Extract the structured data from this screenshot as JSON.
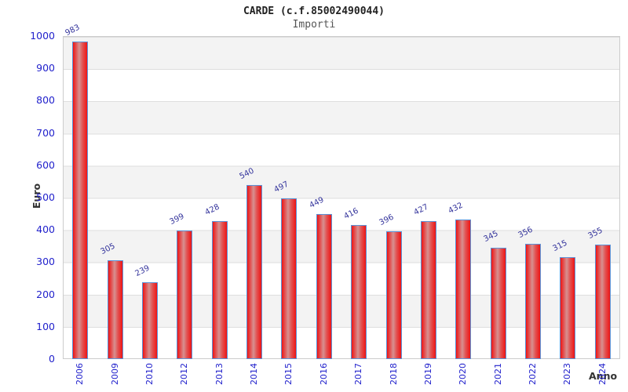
{
  "title": "CARDE (c.f.85002490044)",
  "subtitle": "Importi",
  "y_axis_title": "Euro",
  "x_axis_title": "Anno",
  "chart_data": {
    "type": "bar",
    "title": "CARDE (c.f.85002490044)",
    "subtitle": "Importi",
    "xlabel": "Anno",
    "ylabel": "Euro",
    "categories": [
      "2006",
      "2009",
      "2010",
      "2012",
      "2013",
      "2014",
      "2015",
      "2016",
      "2017",
      "2018",
      "2019",
      "2020",
      "2021",
      "2022",
      "2023",
      "2024"
    ],
    "values": [
      983,
      305,
      239,
      399,
      428,
      540,
      497,
      449,
      416,
      396,
      427,
      432,
      345,
      356,
      315,
      355
    ],
    "ylim": [
      0,
      1000
    ],
    "ytick_step": 100,
    "ytick_labels": [
      "0",
      "100",
      "200",
      "300",
      "400",
      "500",
      "600",
      "700",
      "800",
      "900",
      "1000"
    ],
    "grid": "horizontal-bands-alternating",
    "legend": "none",
    "bar_value_labels_shown": true
  },
  "colors": {
    "background": "#ffffff",
    "title": "#222222",
    "subtitle": "#555555",
    "axis_tick_label": "#2222cc",
    "value_label": "#32329b",
    "axis_title": "#333333",
    "bar_edge": "#ee1414",
    "bar_mid": "#e25252",
    "bar_center": "#d79090",
    "bar_border": "#5b93d8",
    "band_gray": "#f3f3f3",
    "grid_line": "#dedede",
    "plot_border": "#cccccc"
  }
}
